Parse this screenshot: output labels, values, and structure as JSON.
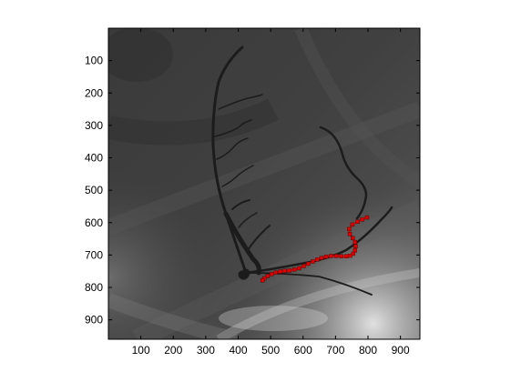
{
  "chart_data": {
    "type": "scatter",
    "title": "",
    "xlabel": "",
    "ylabel": "",
    "xlim": [
      0,
      960
    ],
    "ylim": [
      0,
      960
    ],
    "y_inverted": true,
    "grid": false,
    "x_ticks": [
      100,
      200,
      300,
      400,
      500,
      600,
      700,
      800,
      900
    ],
    "y_ticks": [
      100,
      200,
      300,
      400,
      500,
      600,
      700,
      800,
      900
    ],
    "x_tick_labels": [
      "100",
      "200",
      "300",
      "400",
      "500",
      "600",
      "700",
      "800",
      "900"
    ],
    "y_tick_labels": [
      "100",
      "200",
      "300",
      "400",
      "500",
      "600",
      "700",
      "800",
      "900"
    ],
    "background": "grayscale angiogram image",
    "series": [
      {
        "marker": "filled-square",
        "color": "#e00000",
        "x": [
          797,
          782,
          768,
          752,
          742,
          744,
          753,
          760,
          762,
          760,
          754,
          745,
          733,
          718,
          702,
          686,
          671,
          657,
          644,
          630,
          616,
          602,
          588,
          573,
          558,
          544,
          530,
          516,
          503,
          491,
          481,
          475
        ],
        "y": [
          584,
          590,
          597,
          606,
          620,
          635,
          648,
          660,
          673,
          686,
          696,
          702,
          704,
          704,
          703,
          703,
          705,
          709,
          714,
          720,
          727,
          734,
          741,
          745,
          748,
          749,
          751,
          754,
          759,
          765,
          772,
          778
        ]
      }
    ]
  }
}
